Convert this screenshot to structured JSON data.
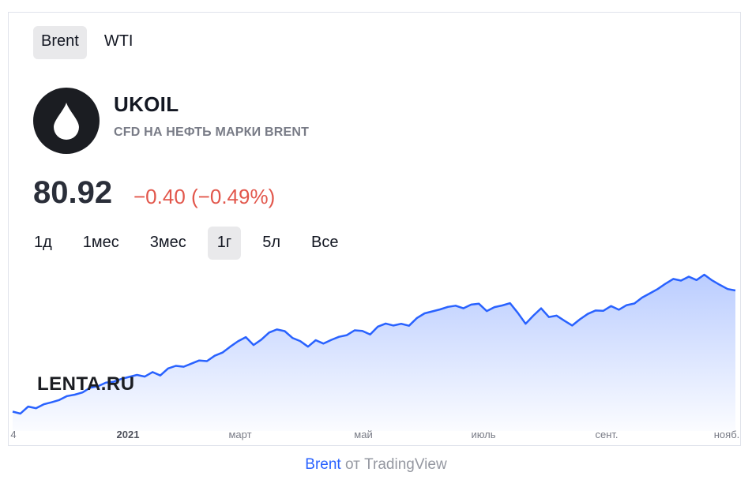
{
  "symbol_tabs": [
    {
      "label": "Brent",
      "active": true
    },
    {
      "label": "WTI",
      "active": false
    }
  ],
  "instrument": {
    "ticker": "UKOIL",
    "description": "CFD НА НЕФТЬ МАРКИ BRENT",
    "logo_icon": "oil-drop-icon"
  },
  "quote": {
    "price": "80.92",
    "change": "−0.40 (−0.49%)",
    "change_color": "#e2574c"
  },
  "ranges": [
    {
      "label": "1д",
      "active": false
    },
    {
      "label": "1мес",
      "active": false
    },
    {
      "label": "3мес",
      "active": false
    },
    {
      "label": "1г",
      "active": true
    },
    {
      "label": "5л",
      "active": false
    },
    {
      "label": "Все",
      "active": false
    }
  ],
  "watermark": "LENTA.RU",
  "footer": {
    "link": "Brent",
    "from": "от",
    "source": "TradingView"
  },
  "chart_data": {
    "type": "area",
    "line_color": "#2962ff",
    "fill_color": "#2962ff",
    "grid": false,
    "x_labels": [
      "4",
      "2021",
      "март",
      "май",
      "июль",
      "сент.",
      "нояб."
    ],
    "series": [
      {
        "values": [
          38.0,
          37.3,
          39.8,
          39.2,
          40.6,
          41.3,
          42.1,
          43.5,
          44.0,
          44.8,
          46.5,
          47.0,
          48.3,
          48.6,
          49.6,
          50.3,
          51.0,
          50.4,
          52.0,
          50.8,
          53.3,
          54.2,
          53.9,
          55.0,
          56.1,
          55.9,
          57.8,
          58.9,
          61.0,
          62.9,
          64.4,
          61.6,
          63.5,
          66.0,
          67.1,
          66.5,
          64.1,
          63.0,
          61.0,
          63.3,
          62.1,
          63.4,
          64.5,
          65.1,
          66.8,
          66.6,
          65.3,
          68.1,
          69.2,
          68.5,
          69.1,
          68.4,
          71.1,
          72.8,
          73.5,
          74.2,
          75.1,
          75.5,
          74.6,
          75.9,
          76.2,
          73.6,
          75.0,
          75.6,
          76.4,
          73.0,
          69.1,
          72.0,
          74.6,
          71.5,
          72.0,
          70.2,
          68.5,
          70.7,
          72.6,
          73.8,
          73.7,
          75.4,
          74.1,
          75.7,
          76.3,
          78.4,
          79.9,
          81.4,
          83.3,
          85.0,
          84.4,
          85.8,
          84.6,
          86.5,
          84.5,
          82.9,
          81.4,
          80.9
        ]
      }
    ]
  }
}
